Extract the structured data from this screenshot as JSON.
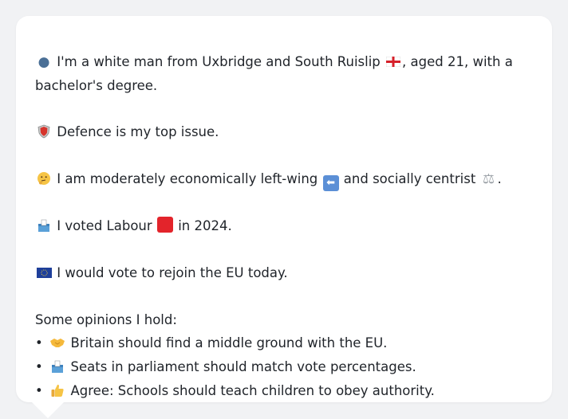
{
  "profile": {
    "intro": {
      "icon": "person-icon",
      "text_a": "I'm a white man from Uxbridge and South Ruislip",
      "flag_icon": "england-flag-icon",
      "text_b": ", aged 21, with a",
      "text_c": "bachelor's degree."
    },
    "issue": {
      "icon": "shield-icon",
      "text": "Defence is my top issue."
    },
    "economics": {
      "icon": "thinking-face-icon",
      "text_a": "I am moderately economically left-wing",
      "left_arrow_icon": "left-arrow-icon",
      "text_b": "and socially centrist",
      "scales_icon": "balance-scale-icon",
      "text_c": "."
    },
    "vote": {
      "icon": "ballot-box-icon",
      "text_a": "I voted Labour",
      "party_icon": "red-square-icon",
      "text_b": "in 2024."
    },
    "eu": {
      "icon": "eu-flag-icon",
      "text": "I would vote to rejoin the EU today."
    },
    "opinions": {
      "heading": "Some opinions I hold:",
      "bullet": "•",
      "items": [
        {
          "icon": "handshake-icon",
          "text": "Britain should find a middle ground with the EU."
        },
        {
          "icon": "ballot-box-icon",
          "text": "Seats in parliament should match vote percentages."
        },
        {
          "icon": "thumbs-up-icon",
          "text": "Agree: Schools should teach children to obey authority."
        }
      ]
    }
  },
  "colors": {
    "background": "#f1f2f4",
    "card": "#ffffff",
    "text": "#1f2329",
    "labour_red": "#e3242b",
    "eu_blue": "#1e3f9a",
    "arrow_blue": "#5b8fd6"
  }
}
